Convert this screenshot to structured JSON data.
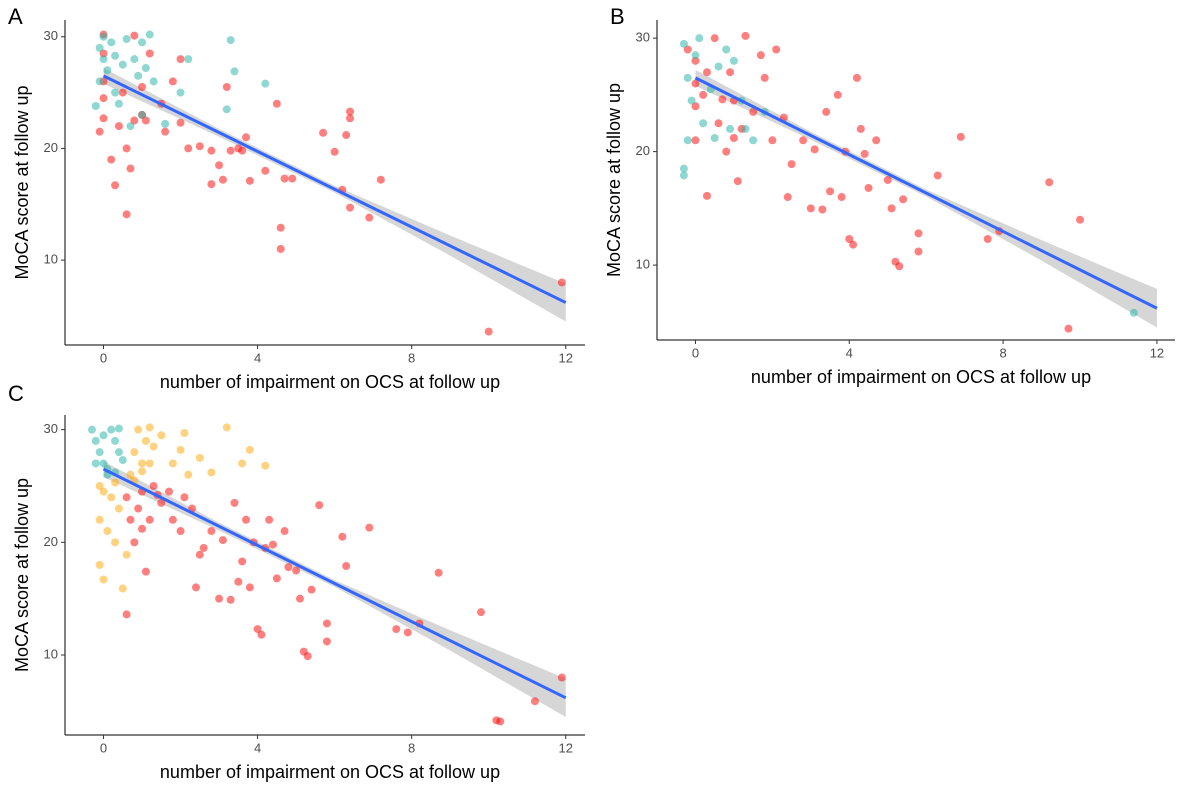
{
  "chart_data": [
    {
      "type": "scatter",
      "panel": "A",
      "xlabel": "number of impairment on OCS at follow up",
      "ylabel": "MoCA score at follow up",
      "xlim": [
        -1,
        12.5
      ],
      "ylim": [
        2.4,
        31.5
      ],
      "xticks": [
        0,
        4,
        8,
        12
      ],
      "yticks": [
        10,
        20,
        30
      ],
      "series": [
        {
          "color": "#ff0000",
          "x": [
            0,
            0,
            0,
            0,
            0,
            -0.1,
            0.2,
            0.3,
            0.4,
            0.5,
            0.6,
            0.6,
            0.7,
            0.8,
            0.8,
            1,
            1,
            1.1,
            1.2,
            1.5,
            1.6,
            1.8,
            2,
            2,
            2.2,
            2.5,
            2.8,
            2.8,
            3,
            3.1,
            3.2,
            3.3,
            3.5,
            3.6,
            3.7,
            3.8,
            4.2,
            4.5,
            4.6,
            4.6,
            4.7,
            4.9,
            5.7,
            6,
            6.2,
            6.3,
            6.4,
            6.4,
            6.4,
            6.9,
            7.2,
            10,
            11.9
          ],
          "y": [
            30.2,
            28.5,
            26,
            24.5,
            22.7,
            21.5,
            19,
            16.7,
            22,
            25,
            20,
            14.1,
            18.2,
            22.5,
            30.1,
            23,
            25.5,
            22.5,
            28.5,
            24,
            21.5,
            26,
            28,
            22.3,
            20,
            20.2,
            19.8,
            16.8,
            18.5,
            17.2,
            25.5,
            19.8,
            20,
            19.8,
            21,
            17.1,
            18,
            24,
            12.9,
            11,
            17.3,
            17.3,
            21.4,
            19.7,
            16.3,
            21.2,
            23.3,
            22.7,
            14.7,
            13.8,
            17.2,
            3.6,
            8
          ]
        },
        {
          "color": "#20b2a6",
          "x": [
            0,
            -0.1,
            0,
            0.1,
            -0.1,
            0.2,
            0.3,
            0.3,
            0.5,
            0.6,
            0.8,
            0.9,
            1,
            1.1,
            1.2,
            1.3,
            1,
            0.7,
            1.6,
            2,
            2.2,
            3.3,
            3.4,
            3.2,
            4.2,
            0.4,
            -0.2
          ],
          "y": [
            30,
            29,
            28,
            27,
            26,
            29.5,
            28.3,
            25,
            27.5,
            29.8,
            28,
            26.5,
            29.5,
            27.2,
            30.2,
            26,
            23,
            22,
            22.2,
            25,
            28,
            29.7,
            26.9,
            23.5,
            25.8,
            24,
            23.8
          ]
        }
      ],
      "fit": {
        "color": "#3366ff",
        "x": [
          0,
          12
        ],
        "y": [
          26.5,
          6.2
        ]
      },
      "band": {
        "color": "#999999",
        "x": [
          0,
          3,
          6,
          9,
          12
        ],
        "lower": [
          25.8,
          21.05,
          16.05,
          10.4,
          4.5
        ],
        "upper": [
          27.2,
          21.75,
          16.65,
          12.2,
          7.9
        ]
      }
    },
    {
      "type": "scatter",
      "panel": "B",
      "xlabel": "number of impairment on OCS at follow up",
      "ylabel": "MoCA score at follow up",
      "xlim": [
        -1,
        12.47
      ],
      "ylim": [
        3.4,
        31.6
      ],
      "xticks": [
        0,
        4,
        8,
        12
      ],
      "yticks": [
        10,
        20,
        30
      ],
      "series": [
        {
          "color": "#ff0000",
          "x": [
            -0.2,
            0,
            0,
            0,
            0,
            0.2,
            0.3,
            0.3,
            0.5,
            0.6,
            0.7,
            0.8,
            0.9,
            1,
            1,
            1.1,
            1.2,
            1.3,
            1.5,
            1.7,
            1.8,
            2,
            2.1,
            2.3,
            2.4,
            2.5,
            2.8,
            3,
            3.1,
            3.3,
            3.4,
            3.5,
            3.7,
            3.8,
            3.9,
            4,
            4.1,
            4.2,
            4.3,
            4.4,
            4.5,
            4.7,
            5,
            5.1,
            5.2,
            5.3,
            5.4,
            5.8,
            5.8,
            6.3,
            6.9,
            7.6,
            7.9,
            9.2,
            9.7,
            10
          ],
          "y": [
            29,
            28,
            26,
            24,
            21,
            25,
            27,
            16.1,
            30,
            22.5,
            24.6,
            20,
            27,
            21.2,
            24.5,
            17.4,
            22,
            30.2,
            23.5,
            28.5,
            26.5,
            21,
            29,
            23,
            16,
            18.9,
            21,
            15,
            20.2,
            14.9,
            23.5,
            16.5,
            25,
            16,
            20,
            12.3,
            11.8,
            26.5,
            22,
            19.8,
            16.8,
            21,
            17.5,
            15,
            10.3,
            9.9,
            15.8,
            12.8,
            11.2,
            17.9,
            21.3,
            12.3,
            13,
            17.3,
            4.4,
            14
          ]
        },
        {
          "color": "#20b2a6",
          "x": [
            -0.3,
            -0.2,
            -0.1,
            -0.2,
            -0.3,
            -0.3,
            0,
            0.1,
            0.2,
            0.4,
            0.6,
            0.8,
            0.9,
            1,
            1.2,
            1.3,
            1.5,
            1.8,
            11.4,
            0.5
          ],
          "y": [
            29.5,
            26.5,
            24.5,
            21,
            18.5,
            17.9,
            28.5,
            30,
            22.5,
            25.5,
            27.5,
            29,
            22,
            28,
            24.5,
            22,
            21,
            23.5,
            5.8,
            21.2
          ]
        }
      ],
      "fit": {
        "color": "#3366ff",
        "x": [
          0,
          12
        ],
        "y": [
          26.5,
          6.2
        ]
      },
      "band": {
        "color": "#999999",
        "x": [
          0,
          3,
          6,
          9,
          12
        ],
        "lower": [
          25.8,
          21.05,
          16.05,
          10.4,
          4.5
        ],
        "upper": [
          27.2,
          21.75,
          16.65,
          12.2,
          7.9
        ]
      }
    },
    {
      "type": "scatter",
      "panel": "C",
      "xlabel": "number of impairment on OCS at follow up",
      "ylabel": "MoCA score at follow up",
      "xlim": [
        -1,
        12.5
      ],
      "ylim": [
        2.9,
        31.3
      ],
      "xticks": [
        0,
        4,
        8,
        12
      ],
      "yticks": [
        10,
        20,
        30
      ],
      "series": [
        {
          "color": "#ff0000",
          "x": [
            0.6,
            0.7,
            0.8,
            0.9,
            1,
            1,
            1.1,
            1.2,
            1.3,
            1.5,
            1.7,
            1.8,
            2,
            2.1,
            2.3,
            2.4,
            2.5,
            2.8,
            3,
            3.1,
            3.3,
            3.4,
            3.5,
            3.7,
            3.8,
            3.9,
            4,
            4.1,
            4.2,
            4.3,
            4.4,
            4.5,
            4.7,
            5,
            5.1,
            5.2,
            5.3,
            5.4,
            5.8,
            5.8,
            6.3,
            6.9,
            7.6,
            7.9,
            8.2,
            8.7,
            9.8,
            10.2,
            10.3,
            11.2,
            11.9,
            0.6,
            1.4,
            2.6,
            3.6,
            4.8,
            5.6,
            6.2
          ],
          "y": [
            24,
            22,
            20,
            23,
            21.2,
            24.5,
            17.4,
            22,
            25,
            23.5,
            24.5,
            22,
            21,
            24,
            23,
            16,
            18.9,
            21,
            15,
            20.2,
            14.9,
            23.5,
            16.5,
            22,
            16,
            20,
            12.3,
            11.8,
            19.5,
            22,
            19.8,
            16.8,
            21,
            17.5,
            15,
            10.3,
            9.9,
            15.8,
            12.8,
            11.2,
            17.9,
            21.3,
            12.3,
            12,
            12.8,
            17.3,
            13.8,
            4.2,
            4.1,
            5.9,
            8,
            13.6,
            24.2,
            19.5,
            18.3,
            17.8,
            23.3,
            20.5
          ]
        },
        {
          "color": "#ffa500",
          "x": [
            -0.1,
            0,
            0.2,
            0.3,
            -0.1,
            0.1,
            0.3,
            -0.1,
            0,
            0.5,
            0.6,
            0.4,
            0.7,
            0.8,
            0.9,
            1,
            1.1,
            1.2,
            1.3,
            0.8,
            1,
            1.2,
            1.5,
            1.8,
            2,
            2.2,
            2.1,
            2.5,
            2.8,
            3.2,
            3.6,
            3.8,
            4.2
          ],
          "y": [
            25,
            24.5,
            24,
            25.3,
            22,
            21,
            20,
            18,
            16.7,
            15.9,
            18.9,
            23,
            26,
            28,
            30,
            27,
            29,
            30.2,
            28.5,
            25.5,
            26.3,
            27,
            29.5,
            27,
            28.2,
            26,
            29.7,
            27.5,
            26.2,
            30.2,
            27,
            28.2,
            26.8
          ]
        },
        {
          "color": "#20b2a6",
          "x": [
            -0.3,
            -0.2,
            -0.1,
            0,
            0.1,
            0.2,
            0.3,
            0.4,
            0.5,
            0.1,
            -0.2,
            0.4,
            0.3,
            0
          ],
          "y": [
            30,
            29,
            28,
            27,
            26,
            30,
            29,
            28,
            27.3,
            26.5,
            27,
            30.1,
            26.2,
            29.5
          ]
        }
      ],
      "fit": {
        "color": "#3366ff",
        "x": [
          0,
          12
        ],
        "y": [
          26.5,
          6.2
        ]
      },
      "band": {
        "color": "#999999",
        "x": [
          0,
          3,
          6,
          9,
          12
        ],
        "lower": [
          25.8,
          21.05,
          16.05,
          10.4,
          4.5
        ],
        "upper": [
          27.2,
          21.75,
          16.65,
          12.2,
          7.9
        ]
      }
    }
  ]
}
